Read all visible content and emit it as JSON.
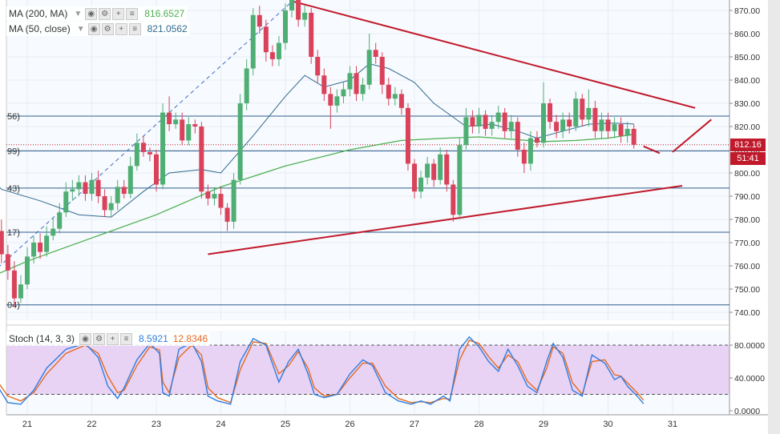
{
  "legend": {
    "ma200": {
      "label": "MA (200, MA)",
      "value": "816.6527",
      "color": "#4caf50"
    },
    "ma50": {
      "label": "MA (50, close)",
      "value": "821.0562",
      "color": "#2f6a8f"
    },
    "stoch": {
      "label": "Stoch (14, 3, 3)",
      "k": "8.5921",
      "d": "12.8346",
      "k_color": "#2f7de1",
      "d_color": "#e66a1f"
    }
  },
  "price_tags": {
    "last": "812.16",
    "countdown": "51:41"
  },
  "levels_left": [
    "56)",
    "99)",
    "43)",
    "17)",
    "04)"
  ],
  "chart_data": {
    "type": "candlestick",
    "price_axis": {
      "ticks": [
        "870.00",
        "860.00",
        "850.00",
        "840.00",
        "830.00",
        "820.00",
        "810.00",
        "800.00",
        "790.00",
        "780.00",
        "770.00",
        "760.00",
        "750.00",
        "740.00"
      ],
      "ylim": [
        738,
        872
      ]
    },
    "stoch_axis": {
      "ticks": [
        "80.0000",
        "40.0000",
        "0.0000"
      ],
      "ylim": [
        0,
        100
      ]
    },
    "x_ticks": [
      "21",
      "22",
      "23",
      "24",
      "25",
      "26",
      "27",
      "28",
      "29",
      "30",
      "31"
    ],
    "horizontal_levels": [
      824.5,
      809.5,
      793.5,
      774.5,
      743.2
    ],
    "current_price": 812.16,
    "trendlines": [
      {
        "name": "upper-trendline",
        "from": [
          25.1,
          874
        ],
        "to": [
          31.35,
          828
        ],
        "color": "#c0192b"
      },
      {
        "name": "lower-trendline",
        "from": [
          23.8,
          765
        ],
        "to": [
          31.15,
          794.5
        ],
        "color": "#c0192b"
      },
      {
        "name": "dashed-support-line",
        "from": [
          20.3,
          753
        ],
        "to": [
          25.15,
          875
        ],
        "color": "#3a6fc4",
        "dashed": true
      }
    ],
    "projection": [
      [
        30.55,
        811.5
      ],
      [
        30.8,
        808.5
      ],
      [
        31.0,
        809
      ],
      [
        31.6,
        823
      ]
    ],
    "candles": [
      [
        20.5,
        787.0,
        775.0,
        792.0,
        773.0
      ],
      [
        20.6,
        775.0,
        765.0,
        780.0,
        761.0
      ],
      [
        20.7,
        765.0,
        758.0,
        769.0,
        754.0
      ],
      [
        20.8,
        758.0,
        746.0,
        762.0,
        742.0
      ],
      [
        20.9,
        746.0,
        752.0,
        756.0,
        744.0
      ],
      [
        21.0,
        752.0,
        764.0,
        768.0,
        750.0
      ],
      [
        21.1,
        764.0,
        770.0,
        773.0,
        761.0
      ],
      [
        21.2,
        770.0,
        766.0,
        774.0,
        763.0
      ],
      [
        21.3,
        766.0,
        773.0,
        777.0,
        764.0
      ],
      [
        21.4,
        773.0,
        776.0,
        781.0,
        771.0
      ],
      [
        21.5,
        776.0,
        783.0,
        787.0,
        774.0
      ],
      [
        21.6,
        783.0,
        792.0,
        796.0,
        781.0
      ],
      [
        21.7,
        792.0,
        793.0,
        797.0,
        788.0
      ],
      [
        21.8,
        793.0,
        796.0,
        799.0,
        790.0
      ],
      [
        21.9,
        796.0,
        791.0,
        799.0,
        788.0
      ],
      [
        22.0,
        791.0,
        797.0,
        800.0,
        788.0
      ],
      [
        22.1,
        797.0,
        790.0,
        801.0,
        787.0
      ],
      [
        22.2,
        790.0,
        784.0,
        793.0,
        781.0
      ],
      [
        22.3,
        784.0,
        787.0,
        790.0,
        781.0
      ],
      [
        22.4,
        787.0,
        794.0,
        797.0,
        784.0
      ],
      [
        22.5,
        794.0,
        791.0,
        797.0,
        789.0
      ],
      [
        22.6,
        791.0,
        803.0,
        807.0,
        789.0
      ],
      [
        22.7,
        803.0,
        813.0,
        817.0,
        801.0
      ],
      [
        22.8,
        813.0,
        809.0,
        816.0,
        807.0
      ],
      [
        22.9,
        809.0,
        808.0,
        811.0,
        805.0
      ],
      [
        23.0,
        808.0,
        795.0,
        810.0,
        792.0
      ],
      [
        23.1,
        795.0,
        826.0,
        830.0,
        793.0
      ],
      [
        23.2,
        826.0,
        821.0,
        833.0,
        818.0
      ],
      [
        23.3,
        821.0,
        823.0,
        826.0,
        819.0
      ],
      [
        23.4,
        823.0,
        814.0,
        826.0,
        812.0
      ],
      [
        23.5,
        814.0,
        821.0,
        824.0,
        812.0
      ],
      [
        23.6,
        821.0,
        820.0,
        823.0,
        817.0
      ],
      [
        23.7,
        820.0,
        792.0,
        822.0,
        789.0
      ],
      [
        23.8,
        792.0,
        789.0,
        795.0,
        786.0
      ],
      [
        23.9,
        789.0,
        791.0,
        794.0,
        786.0
      ],
      [
        24.0,
        791.0,
        785.0,
        794.0,
        782.0
      ],
      [
        24.1,
        785.0,
        779.0,
        787.0,
        775.0
      ],
      [
        24.2,
        779.0,
        797.0,
        800.0,
        776.0
      ],
      [
        24.3,
        797.0,
        830.0,
        834.0,
        795.0
      ],
      [
        24.4,
        830.0,
        845.0,
        849.0,
        827.0
      ],
      [
        24.5,
        845.0,
        868.0,
        871.0,
        842.0
      ],
      [
        24.6,
        868.0,
        863.0,
        872.0,
        860.0
      ],
      [
        24.7,
        863.0,
        852.0,
        866.0,
        848.0
      ],
      [
        24.8,
        852.0,
        849.0,
        855.0,
        846.0
      ],
      [
        24.9,
        849.0,
        856.0,
        859.0,
        846.0
      ],
      [
        25.0,
        856.0,
        870.0,
        873.0,
        853.0
      ],
      [
        25.1,
        870.0,
        875.0,
        878.0,
        867.0
      ],
      [
        25.2,
        875.0,
        866.0,
        877.0,
        863.0
      ],
      [
        25.3,
        866.0,
        869.0,
        872.0,
        863.0
      ],
      [
        25.4,
        869.0,
        850.0,
        871.0,
        847.0
      ],
      [
        25.5,
        850.0,
        842.0,
        853.0,
        839.0
      ],
      [
        25.6,
        842.0,
        834.0,
        845.0,
        831.0
      ],
      [
        25.7,
        834.0,
        829.0,
        837.0,
        819.0
      ],
      [
        25.8,
        829.0,
        833.0,
        836.0,
        826.0
      ],
      [
        25.9,
        833.0,
        836.0,
        839.0,
        830.0
      ],
      [
        26.0,
        836.0,
        843.0,
        846.0,
        833.0
      ],
      [
        26.1,
        843.0,
        834.0,
        846.0,
        831.0
      ],
      [
        26.2,
        834.0,
        838.0,
        841.0,
        831.0
      ],
      [
        26.3,
        838.0,
        853.0,
        860.0,
        836.0
      ],
      [
        26.4,
        853.0,
        850.0,
        856.0,
        847.0
      ],
      [
        26.5,
        850.0,
        838.0,
        852.0,
        834.0
      ],
      [
        26.6,
        838.0,
        832.0,
        841.0,
        829.0
      ],
      [
        26.7,
        832.0,
        834.0,
        837.0,
        829.0
      ],
      [
        26.8,
        834.0,
        828.0,
        836.0,
        825.0
      ],
      [
        26.9,
        828.0,
        804.0,
        830.0,
        801.0
      ],
      [
        27.0,
        804.0,
        792.0,
        806.0,
        789.0
      ],
      [
        27.1,
        792.0,
        798.0,
        801.0,
        789.0
      ],
      [
        27.2,
        798.0,
        804.0,
        807.0,
        795.0
      ],
      [
        27.3,
        804.0,
        797.0,
        806.0,
        794.0
      ],
      [
        27.4,
        797.0,
        808.0,
        811.0,
        795.0
      ],
      [
        27.5,
        808.0,
        795.0,
        810.0,
        792.0
      ],
      [
        27.6,
        795.0,
        782.0,
        797.0,
        779.0
      ],
      [
        27.7,
        782.0,
        812.0,
        815.0,
        780.0
      ],
      [
        27.8,
        812.0,
        824.0,
        828.0,
        810.0
      ],
      [
        27.9,
        824.0,
        820.0,
        827.0,
        817.0
      ],
      [
        28.0,
        820.0,
        825.0,
        828.0,
        817.0
      ],
      [
        28.1,
        825.0,
        819.0,
        827.0,
        816.0
      ],
      [
        28.2,
        819.0,
        822.0,
        825.0,
        816.0
      ],
      [
        28.3,
        822.0,
        826.0,
        829.0,
        819.0
      ],
      [
        28.4,
        826.0,
        818.0,
        828.0,
        815.0
      ],
      [
        28.5,
        818.0,
        822.0,
        825.0,
        815.0
      ],
      [
        28.6,
        822.0,
        810.0,
        824.0,
        807.0
      ],
      [
        28.7,
        810.0,
        804.0,
        813.0,
        800.0
      ],
      [
        28.8,
        804.0,
        815.0,
        818.0,
        801.0
      ],
      [
        28.9,
        815.0,
        813.0,
        818.0,
        811.0
      ],
      [
        29.0,
        813.0,
        830.0,
        839.0,
        811.0
      ],
      [
        29.1,
        830.0,
        822.0,
        832.0,
        819.0
      ],
      [
        29.2,
        822.0,
        818.0,
        825.0,
        815.0
      ],
      [
        29.3,
        818.0,
        823.0,
        826.0,
        815.0
      ],
      [
        29.4,
        823.0,
        820.0,
        826.0,
        817.0
      ],
      [
        29.5,
        820.0,
        832.0,
        835.0,
        818.0
      ],
      [
        29.6,
        832.0,
        823.0,
        834.0,
        820.0
      ],
      [
        29.7,
        823.0,
        828.0,
        836.0,
        820.0
      ],
      [
        29.8,
        828.0,
        818.0,
        831.0,
        815.0
      ],
      [
        29.9,
        818.0,
        823.0,
        826.0,
        815.0
      ],
      [
        30.0,
        823.0,
        818.0,
        826.0,
        815.0
      ],
      [
        30.1,
        818.0,
        821.0,
        824.0,
        815.0
      ],
      [
        30.2,
        821.0,
        816.0,
        824.0,
        813.0
      ],
      [
        30.3,
        816.0,
        819.0,
        822.0,
        813.0
      ],
      [
        30.4,
        819.0,
        812.16,
        821.0,
        810.5
      ]
    ],
    "ma200": [
      [
        20.0,
        750.0
      ],
      [
        21.0,
        762.0
      ],
      [
        22.0,
        772.0
      ],
      [
        23.0,
        782.0
      ],
      [
        23.5,
        788.0
      ],
      [
        24.0,
        794.0
      ],
      [
        25.0,
        803.0
      ],
      [
        26.0,
        810.0
      ],
      [
        26.8,
        814.0
      ],
      [
        27.5,
        815.0
      ],
      [
        28.0,
        815.5
      ],
      [
        28.5,
        814.5
      ],
      [
        29.0,
        813.5
      ],
      [
        29.5,
        814.0
      ],
      [
        30.0,
        815.0
      ],
      [
        30.4,
        816.6527
      ]
    ],
    "ma50": [
      [
        20.0,
        812.0
      ],
      [
        20.6,
        793.0
      ],
      [
        21.2,
        788.0
      ],
      [
        21.8,
        782.0
      ],
      [
        22.3,
        781.0
      ],
      [
        22.8,
        792.0
      ],
      [
        23.2,
        800.0
      ],
      [
        23.7,
        801.5
      ],
      [
        24.0,
        800.0
      ],
      [
        24.5,
        816.0
      ],
      [
        25.0,
        833.0
      ],
      [
        25.3,
        842.0
      ],
      [
        25.6,
        837.0
      ],
      [
        26.0,
        840.0
      ],
      [
        26.3,
        847.0
      ],
      [
        26.6,
        845.0
      ],
      [
        27.0,
        839.0
      ],
      [
        27.3,
        830.0
      ],
      [
        27.8,
        820.0
      ],
      [
        28.2,
        821.0
      ],
      [
        28.6,
        818.0
      ],
      [
        28.9,
        815.0
      ],
      [
        29.3,
        818.0
      ],
      [
        29.7,
        821.0
      ],
      [
        30.1,
        821.5
      ],
      [
        30.4,
        821.0562
      ]
    ],
    "stoch_k": [
      [
        20.3,
        42
      ],
      [
        20.5,
        35
      ],
      [
        20.7,
        10
      ],
      [
        20.9,
        8
      ],
      [
        21.1,
        25
      ],
      [
        21.3,
        52
      ],
      [
        21.6,
        75
      ],
      [
        21.9,
        82
      ],
      [
        22.1,
        65
      ],
      [
        22.25,
        30
      ],
      [
        22.4,
        15
      ],
      [
        22.5,
        28
      ],
      [
        22.7,
        62
      ],
      [
        22.9,
        82
      ],
      [
        23.05,
        70
      ],
      [
        23.1,
        22
      ],
      [
        23.2,
        18
      ],
      [
        23.35,
        75
      ],
      [
        23.55,
        83
      ],
      [
        23.7,
        60
      ],
      [
        23.8,
        18
      ],
      [
        23.95,
        12
      ],
      [
        24.15,
        8
      ],
      [
        24.3,
        60
      ],
      [
        24.5,
        88
      ],
      [
        24.7,
        80
      ],
      [
        24.9,
        35
      ],
      [
        25.05,
        60
      ],
      [
        25.2,
        75
      ],
      [
        25.35,
        45
      ],
      [
        25.45,
        20
      ],
      [
        25.6,
        16
      ],
      [
        25.8,
        20
      ],
      [
        26.0,
        45
      ],
      [
        26.2,
        62
      ],
      [
        26.35,
        55
      ],
      [
        26.55,
        22
      ],
      [
        26.75,
        12
      ],
      [
        26.95,
        8
      ],
      [
        27.1,
        12
      ],
      [
        27.25,
        8
      ],
      [
        27.45,
        18
      ],
      [
        27.55,
        12
      ],
      [
        27.7,
        75
      ],
      [
        27.85,
        90
      ],
      [
        28.0,
        78
      ],
      [
        28.15,
        60
      ],
      [
        28.3,
        48
      ],
      [
        28.45,
        75
      ],
      [
        28.6,
        55
      ],
      [
        28.75,
        30
      ],
      [
        28.9,
        22
      ],
      [
        29.05,
        60
      ],
      [
        29.15,
        82
      ],
      [
        29.3,
        65
      ],
      [
        29.45,
        25
      ],
      [
        29.6,
        18
      ],
      [
        29.75,
        68
      ],
      [
        29.95,
        58
      ],
      [
        30.1,
        38
      ],
      [
        30.2,
        42
      ],
      [
        30.3,
        30
      ],
      [
        30.45,
        18
      ],
      [
        30.55,
        8.5921
      ]
    ],
    "stoch_d": [
      [
        20.3,
        45
      ],
      [
        20.5,
        40
      ],
      [
        20.7,
        18
      ],
      [
        20.9,
        12
      ],
      [
        21.1,
        22
      ],
      [
        21.3,
        45
      ],
      [
        21.6,
        70
      ],
      [
        21.9,
        80
      ],
      [
        22.1,
        70
      ],
      [
        22.25,
        42
      ],
      [
        22.4,
        22
      ],
      [
        22.5,
        25
      ],
      [
        22.7,
        55
      ],
      [
        22.9,
        78
      ],
      [
        23.05,
        74
      ],
      [
        23.1,
        35
      ],
      [
        23.2,
        22
      ],
      [
        23.35,
        65
      ],
      [
        23.55,
        80
      ],
      [
        23.7,
        68
      ],
      [
        23.8,
        28
      ],
      [
        23.95,
        16
      ],
      [
        24.15,
        10
      ],
      [
        24.3,
        50
      ],
      [
        24.5,
        84
      ],
      [
        24.7,
        82
      ],
      [
        24.9,
        45
      ],
      [
        25.05,
        55
      ],
      [
        25.2,
        72
      ],
      [
        25.35,
        52
      ],
      [
        25.45,
        28
      ],
      [
        25.6,
        18
      ],
      [
        25.8,
        20
      ],
      [
        26.0,
        40
      ],
      [
        26.2,
        58
      ],
      [
        26.35,
        58
      ],
      [
        26.55,
        30
      ],
      [
        26.75,
        15
      ],
      [
        26.95,
        10
      ],
      [
        27.1,
        11
      ],
      [
        27.25,
        10
      ],
      [
        27.45,
        15
      ],
      [
        27.55,
        14
      ],
      [
        27.7,
        62
      ],
      [
        27.85,
        86
      ],
      [
        28.0,
        82
      ],
      [
        28.15,
        66
      ],
      [
        28.3,
        52
      ],
      [
        28.45,
        68
      ],
      [
        28.6,
        60
      ],
      [
        28.75,
        36
      ],
      [
        28.9,
        25
      ],
      [
        29.05,
        52
      ],
      [
        29.15,
        78
      ],
      [
        29.3,
        70
      ],
      [
        29.45,
        34
      ],
      [
        29.6,
        20
      ],
      [
        29.75,
        60
      ],
      [
        29.95,
        62
      ],
      [
        30.1,
        44
      ],
      [
        30.2,
        42
      ],
      [
        30.3,
        34
      ],
      [
        30.45,
        22
      ],
      [
        30.55,
        12.8346
      ]
    ]
  }
}
